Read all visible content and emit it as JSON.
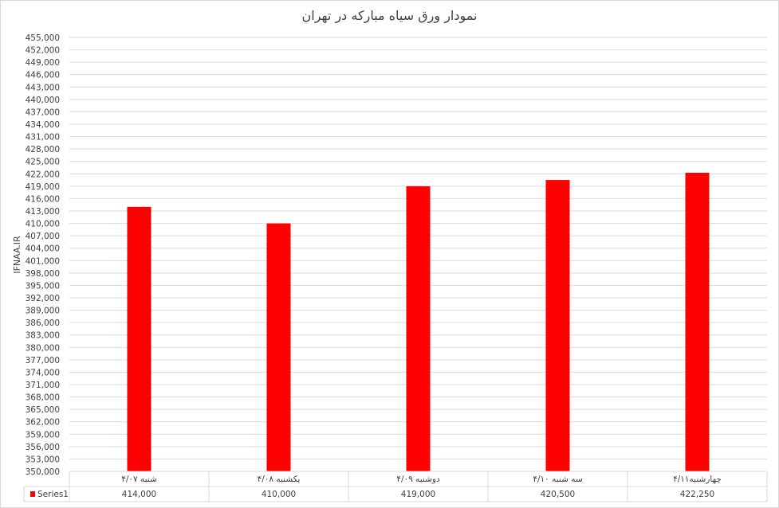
{
  "chart_data": {
    "type": "bar",
    "title": "نمودار ورق سیاه مبارکه در تهران",
    "ylabel": "IFNAA.IR",
    "xlabel": "",
    "categories": [
      "شنبه ۴/۰۷",
      "یکشنبه ۴/۰۸",
      "دوشنبه ۴/۰۹",
      "سه شنبه ۴/۱۰",
      "چهارشنبه۴/۱۱"
    ],
    "series": [
      {
        "name": "Series1",
        "values": [
          414000,
          410000,
          419000,
          420500,
          422250
        ],
        "color": "#ff0000"
      }
    ],
    "table_values": [
      "414,000",
      "410,000",
      "419,000",
      "420,500",
      "422,250"
    ],
    "ylim": [
      350000,
      455000
    ],
    "ytick_step": 3000,
    "grid": true,
    "legend": "data-table"
  }
}
